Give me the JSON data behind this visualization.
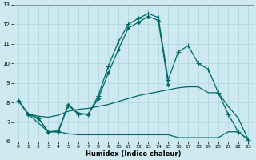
{
  "xlabel": "Humidex (Indice chaleur)",
  "background_color": "#ceeaf0",
  "grid_color": "#aed4dc",
  "line_color": "#006868",
  "xlim": [
    -0.5,
    23.5
  ],
  "ylim": [
    6,
    13
  ],
  "xticks": [
    0,
    1,
    2,
    3,
    4,
    5,
    6,
    7,
    8,
    9,
    10,
    11,
    12,
    13,
    14,
    15,
    16,
    17,
    18,
    19,
    20,
    21,
    22,
    23
  ],
  "yticks": [
    6,
    7,
    8,
    9,
    10,
    11,
    12,
    13
  ],
  "series": [
    {
      "x": [
        0,
        1,
        2,
        3,
        4,
        5,
        6,
        7,
        8,
        9,
        10,
        11,
        12,
        13,
        14,
        15,
        16,
        17,
        18,
        19,
        20,
        21,
        22,
        23
      ],
      "y": [
        8.1,
        7.4,
        7.2,
        6.5,
        6.5,
        7.85,
        7.4,
        7.4,
        8.35,
        9.85,
        11.1,
        12.0,
        12.3,
        12.55,
        12.35,
        9.15,
        10.6,
        10.9,
        10.0,
        9.7,
        8.5,
        7.4,
        6.5,
        6.1
      ],
      "marker": "+",
      "markersize": 4,
      "linewidth": 0.9
    },
    {
      "x": [
        0,
        1,
        2,
        3,
        4,
        5,
        6,
        7,
        8,
        9,
        10,
        11,
        12,
        13,
        14,
        15
      ],
      "y": [
        8.1,
        7.4,
        7.2,
        6.5,
        6.55,
        7.9,
        7.45,
        7.4,
        8.2,
        9.5,
        10.7,
        11.8,
        12.1,
        12.4,
        12.2,
        8.9
      ],
      "marker": "D",
      "markersize": 2,
      "linewidth": 0.9
    },
    {
      "x": [
        0,
        1,
        3,
        4,
        5,
        6,
        7,
        8,
        9,
        10,
        11,
        12,
        13,
        14,
        15,
        16,
        17,
        18,
        19,
        20,
        21,
        22,
        23
      ],
      "y": [
        8.1,
        7.4,
        6.5,
        6.5,
        6.4,
        6.35,
        6.35,
        6.35,
        6.35,
        6.35,
        6.35,
        6.35,
        6.35,
        6.35,
        6.35,
        6.2,
        6.2,
        6.2,
        6.2,
        6.2,
        6.5,
        6.5,
        6.1
      ],
      "marker": null,
      "markersize": 0,
      "linewidth": 0.9
    },
    {
      "x": [
        0,
        1,
        2,
        3,
        4,
        5,
        6,
        7,
        8,
        9,
        10,
        11,
        12,
        13,
        14,
        15,
        16,
        17,
        18,
        19,
        20,
        21,
        22,
        23
      ],
      "y": [
        8.1,
        7.4,
        7.3,
        7.25,
        7.35,
        7.55,
        7.65,
        7.7,
        7.8,
        7.9,
        8.05,
        8.2,
        8.35,
        8.45,
        8.55,
        8.65,
        8.75,
        8.8,
        8.8,
        8.5,
        8.5,
        7.8,
        7.2,
        6.1
      ],
      "marker": null,
      "markersize": 0,
      "linewidth": 0.9
    }
  ]
}
